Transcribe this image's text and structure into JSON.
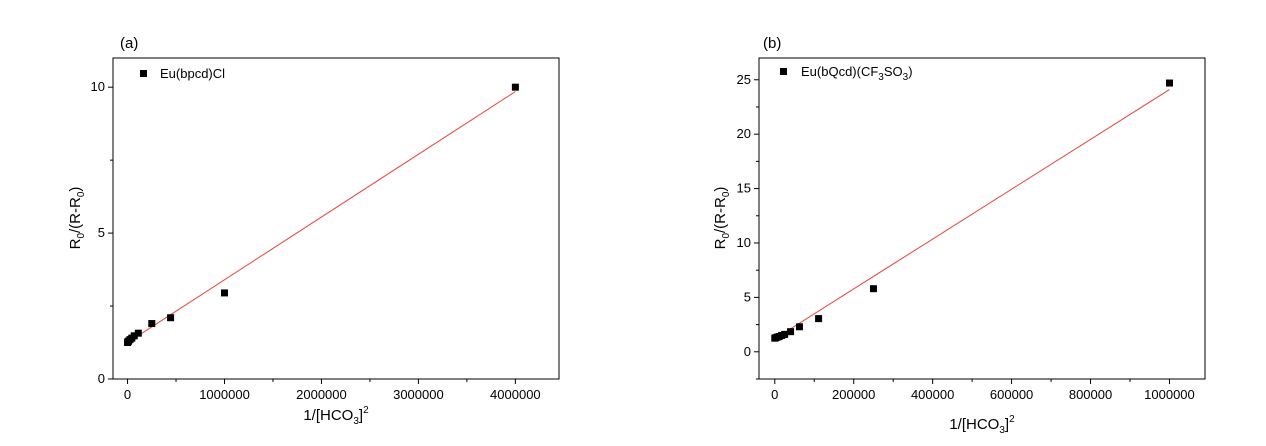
{
  "chart_data": [
    {
      "type": "scatter",
      "panel_label": "(a)",
      "xlabel": "1/[HCO3]2",
      "ylabel": "R0/(R-R0)",
      "xlim": [
        -150000,
        4450000
      ],
      "ylim": [
        0,
        11
      ],
      "x_ticks": [
        0,
        1000000,
        2000000,
        3000000,
        4000000
      ],
      "x_tick_labels": [
        "0",
        "1000000",
        "2000000",
        "3000000",
        "4000000"
      ],
      "y_ticks": [
        0,
        5,
        10
      ],
      "y_tick_labels": [
        "0",
        "5",
        "10"
      ],
      "series": [
        {
          "name": "Eu(bpcd)Cl",
          "x": [
            0,
            4000,
            11000,
            25000,
            44000,
            69000,
            111000,
            250000,
            444000,
            1000000,
            4000000
          ],
          "y": [
            1.25,
            1.28,
            1.3,
            1.35,
            1.4,
            1.48,
            1.57,
            1.9,
            2.1,
            2.95,
            10.0
          ]
        }
      ],
      "fit_line": {
        "x": [
          0,
          4000000
        ],
        "y": [
          1.25,
          9.85
        ]
      },
      "legend": {
        "placement": "top-left"
      },
      "grid": false
    },
    {
      "type": "scatter",
      "panel_label": "(b)",
      "xlabel": "1/[HCO3]2",
      "ylabel": "R0/(R-R0)",
      "xlim": [
        -40000,
        1090000
      ],
      "ylim": [
        -2.5,
        27
      ],
      "x_ticks": [
        0,
        200000,
        400000,
        600000,
        800000,
        1000000
      ],
      "x_tick_labels": [
        "0",
        "200000",
        "400000",
        "600000",
        "800000",
        "1000000"
      ],
      "y_ticks": [
        0,
        5,
        10,
        15,
        20,
        25
      ],
      "y_tick_labels": [
        "0",
        "5",
        "10",
        "15",
        "20",
        "25"
      ],
      "series": [
        {
          "name": "Eu(bQcd)(CF3SO3)",
          "x": [
            0,
            2500,
            6250,
            11100,
            17400,
            25000,
            40000,
            62500,
            111000,
            250000,
            1000000
          ],
          "y": [
            1.25,
            1.3,
            1.35,
            1.4,
            1.5,
            1.6,
            1.85,
            2.3,
            3.05,
            5.8,
            24.7
          ]
        }
      ],
      "fit_line": {
        "x": [
          0,
          1000000
        ],
        "y": [
          1.2,
          24.1
        ]
      },
      "legend": {
        "placement": "top-left"
      },
      "grid": false
    }
  ],
  "labels": {
    "a_xlabel_main": "1/[HCO",
    "a_xlabel_sub": "3",
    "a_xlabel_close": "]",
    "a_xlabel_sup": "2",
    "a_ylabel_r": "R",
    "a_ylabel_sub1": "0",
    "a_ylabel_mid": "/(R-R",
    "a_ylabel_sub2": "0",
    "a_ylabel_close": ")",
    "a_legend_text": "Eu(bpcd)Cl",
    "b_xlabel_main": "1/[HCO",
    "b_xlabel_sub": "3",
    "b_xlabel_close": "]",
    "b_xlabel_sup": "2",
    "b_ylabel_r": "R",
    "b_ylabel_sub1": "0",
    "b_ylabel_mid": "/(R-R",
    "b_ylabel_sub2": "0",
    "b_ylabel_close": ")",
    "b_legend_main": "Eu(bQcd)(CF",
    "b_legend_sub1": "3",
    "b_legend_mid": "SO",
    "b_legend_sub2": "3",
    "b_legend_close": ")"
  },
  "colors": {
    "marker": "#000000",
    "fit_line": "#e8413a",
    "axis": "#000000"
  }
}
